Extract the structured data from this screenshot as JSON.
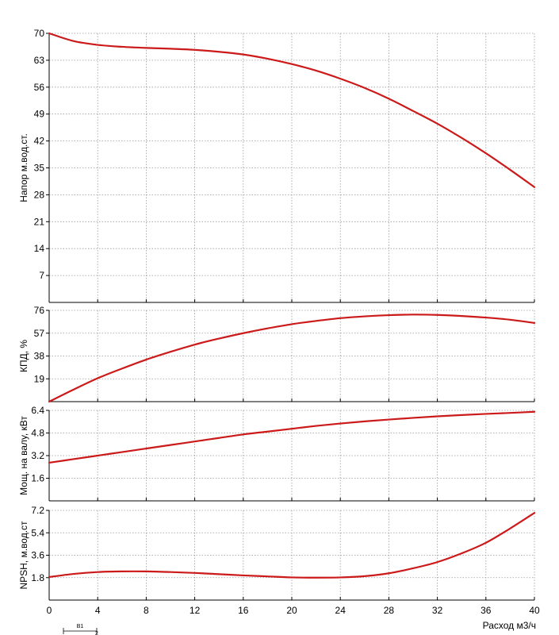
{
  "colors": {
    "curve": "#cc1a1a",
    "grid": "#9a9a9a",
    "axis": "#000000"
  },
  "chart_data": [
    {
      "type": "line",
      "ylabel": "Напор м.вод.ст.",
      "ylim": [
        0,
        70
      ],
      "yticks": [
        7,
        14,
        21,
        28,
        35,
        42,
        49,
        56,
        63,
        70
      ],
      "grid": true,
      "series": [
        {
          "x": [
            0,
            2,
            4,
            6,
            8,
            10,
            12,
            14,
            16,
            18,
            20,
            22,
            24,
            26,
            28,
            30,
            32,
            34,
            36,
            38,
            40
          ],
          "y": [
            70.0,
            68.0,
            67.0,
            66.5,
            66.2,
            66.0,
            65.7,
            65.2,
            64.5,
            63.4,
            62.0,
            60.3,
            58.2,
            55.8,
            53.0,
            49.8,
            46.5,
            42.8,
            38.8,
            34.5,
            30.0
          ]
        }
      ]
    },
    {
      "type": "line",
      "ylabel": "КПД, %",
      "ylim": [
        0,
        76
      ],
      "yticks": [
        19,
        38,
        57,
        76
      ],
      "grid": true,
      "series": [
        {
          "x": [
            0,
            2,
            4,
            6,
            8,
            10,
            12,
            14,
            16,
            18,
            20,
            22,
            24,
            26,
            28,
            30,
            32,
            34,
            36,
            38,
            40
          ],
          "y": [
            0.0,
            10.0,
            19.5,
            27.5,
            35.0,
            41.5,
            47.5,
            52.5,
            57.0,
            61.0,
            64.5,
            67.2,
            69.5,
            71.0,
            72.0,
            72.5,
            72.2,
            71.3,
            70.0,
            68.2,
            65.5
          ]
        }
      ]
    },
    {
      "type": "line",
      "ylabel": "Мощ. на валу, кВт",
      "ylim": [
        0,
        6.4
      ],
      "yticks": [
        1.6,
        3.2,
        4.8,
        6.4
      ],
      "grid": true,
      "series": [
        {
          "x": [
            0,
            2,
            4,
            6,
            8,
            10,
            12,
            14,
            16,
            18,
            20,
            22,
            24,
            26,
            28,
            30,
            32,
            34,
            36,
            38,
            40
          ],
          "y": [
            2.7,
            2.95,
            3.2,
            3.45,
            3.7,
            3.95,
            4.2,
            4.45,
            4.7,
            4.9,
            5.1,
            5.3,
            5.47,
            5.62,
            5.75,
            5.87,
            5.98,
            6.07,
            6.15,
            6.22,
            6.3
          ]
        }
      ]
    },
    {
      "type": "line",
      "ylabel": "NPSH, м.вод.ст",
      "xlabel": "Расход м3/ч",
      "xlim": [
        0,
        40
      ],
      "xticks": [
        "0",
        "4",
        "8",
        "12",
        "16",
        "20",
        "24",
        "28",
        "32",
        "36",
        "40"
      ],
      "ylim": [
        0,
        7.2
      ],
      "yticks": [
        1.8,
        3.6,
        5.4,
        7.2
      ],
      "grid": true,
      "series": [
        {
          "x": [
            0,
            2,
            4,
            6,
            8,
            10,
            12,
            14,
            16,
            18,
            20,
            22,
            24,
            26,
            28,
            30,
            32,
            34,
            36,
            38,
            40
          ],
          "y": [
            1.85,
            2.1,
            2.25,
            2.3,
            2.3,
            2.25,
            2.18,
            2.08,
            1.98,
            1.9,
            1.82,
            1.8,
            1.82,
            1.92,
            2.15,
            2.55,
            3.05,
            3.75,
            4.6,
            5.75,
            7.0
          ]
        }
      ]
    }
  ],
  "footer_marker": {
    "label": "B1",
    "sublabel": "2"
  }
}
